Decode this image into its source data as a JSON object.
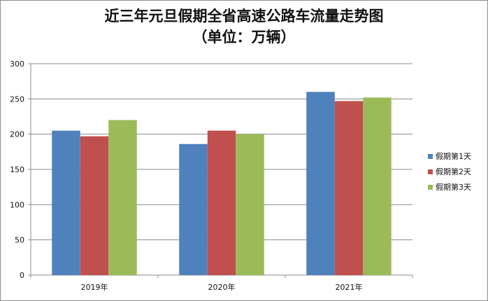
{
  "chart_data": {
    "type": "bar",
    "title": "近三年元旦假期全省高速公路车流量走势图",
    "subtitle": "（单位：万辆）",
    "categories": [
      "2019年",
      "2020年",
      "2021年"
    ],
    "series": [
      {
        "name": "假期第1天",
        "color": "#4F81BD",
        "values": [
          205,
          186,
          260
        ]
      },
      {
        "name": "假期第2天",
        "color": "#C0504D",
        "values": [
          197,
          205,
          247
        ]
      },
      {
        "name": "假期第3天",
        "color": "#9BBB59",
        "values": [
          220,
          200,
          252
        ]
      }
    ],
    "ylim": [
      0,
      300
    ],
    "yticks": [
      "0",
      "50",
      "100",
      "150",
      "200",
      "250",
      "300"
    ],
    "xlabel": "",
    "ylabel": "",
    "grid": true,
    "legend": "right"
  }
}
